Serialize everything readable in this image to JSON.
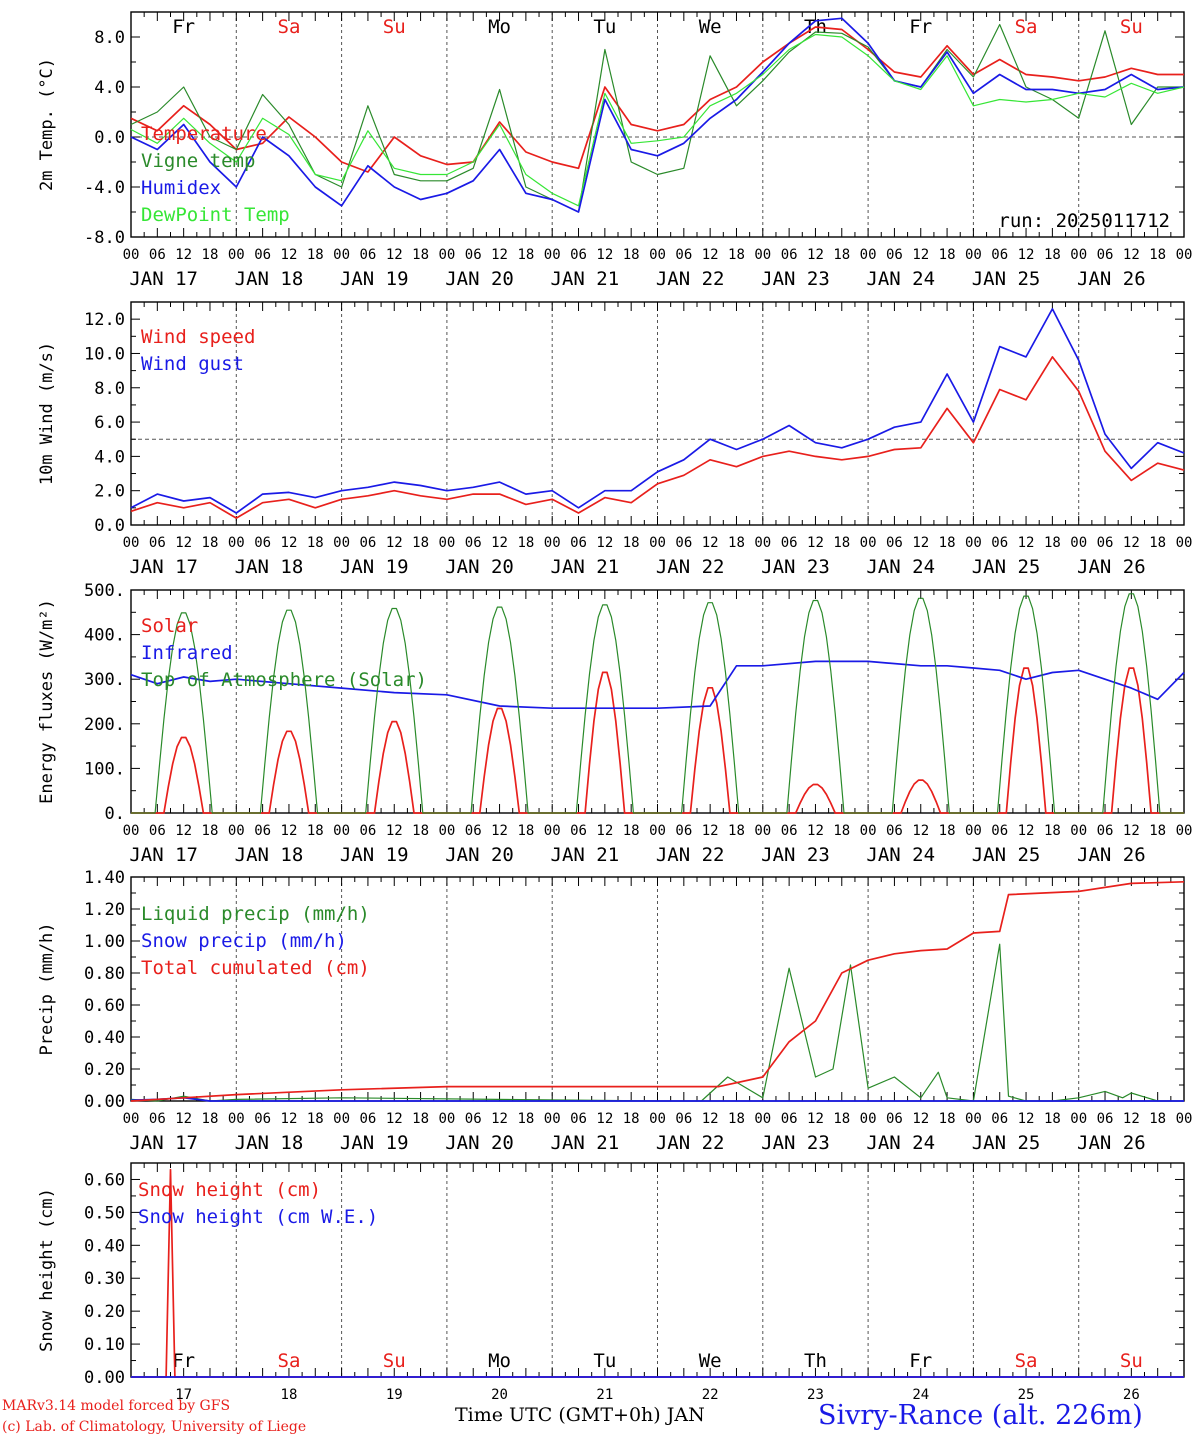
{
  "colors": {
    "red": "#e8201c",
    "blue": "#1a1ae6",
    "green": "#2a8a2a",
    "lightgreen": "#36e636",
    "axis": "#000000",
    "grid": "#555555"
  },
  "footer": {
    "model": "MARv3.14 model forced by GFS",
    "copyright": "(c) Lab. of Climatology, University of Liege",
    "xlabel": "Time UTC (GMT+0h) JAN",
    "station": "Sivry-Rance (alt. 226m)"
  },
  "chart_data": [
    {
      "type": "line",
      "ylabel": "2m Temp. (°C)",
      "ylim": [
        -8,
        10
      ],
      "yticks": [
        "-8.0",
        "-4.0",
        "0.0",
        "4.0",
        "8.0"
      ],
      "ytick_values": [
        -8,
        -4,
        0,
        4,
        8
      ],
      "hline": 0,
      "annotation": "run: 2025011712",
      "day_labels": [
        "Fr",
        "Sa",
        "Su",
        "Mo",
        "Tu",
        "We",
        "Th",
        "Fr",
        "Sa",
        "Su"
      ],
      "weekend": [
        false,
        true,
        true,
        false,
        false,
        false,
        false,
        false,
        true,
        true
      ],
      "x_hours": [
        0,
        6,
        12,
        18,
        24,
        30,
        36,
        42,
        48,
        54,
        60,
        66,
        72,
        78,
        84,
        90,
        96,
        102,
        108,
        114,
        120,
        126,
        132,
        138,
        144,
        150,
        156,
        162,
        168,
        174,
        180,
        186,
        192,
        198,
        204,
        210,
        216,
        222,
        228,
        234,
        240
      ],
      "series": [
        {
          "name": "Temperature",
          "color": "red",
          "values": [
            1.5,
            0.5,
            2.5,
            1.0,
            -1.0,
            -0.5,
            1.6,
            0.0,
            -2.0,
            -2.8,
            0.0,
            -1.5,
            -2.2,
            -2.0,
            1.2,
            -1.2,
            -2.0,
            -2.5,
            4.0,
            1.0,
            0.5,
            1.0,
            3.0,
            4.0,
            6.0,
            7.5,
            8.8,
            8.6,
            7.0,
            5.2,
            4.8,
            7.3,
            5.0,
            6.2,
            5.0,
            4.8,
            4.5,
            4.8,
            5.5,
            5.0,
            5.0
          ]
        },
        {
          "name": "Vigne temp",
          "color": "green",
          "values": [
            1.0,
            2.0,
            4.0,
            0.0,
            -1.0,
            3.4,
            1.0,
            -3.0,
            -4.0,
            2.5,
            -3.0,
            -3.5,
            -3.5,
            -2.5,
            3.8,
            -4.0,
            -5.0,
            -6.0,
            7.0,
            -2.0,
            -3.0,
            -2.5,
            6.5,
            2.5,
            4.5,
            6.8,
            8.4,
            8.3,
            7.2,
            4.5,
            4.0,
            7.0,
            4.8,
            9.0,
            4.0,
            3.0,
            1.5,
            8.5,
            1.0,
            4.0,
            4.0
          ]
        },
        {
          "name": "Humidex",
          "color": "blue",
          "values": [
            0.0,
            -1.0,
            1.0,
            -2.0,
            -4.0,
            0.0,
            -1.5,
            -4.0,
            -5.5,
            -2.3,
            -4.0,
            -5.0,
            -4.5,
            -3.5,
            -1.0,
            -4.5,
            -5.0,
            -6.0,
            3.0,
            -1.0,
            -1.5,
            -0.5,
            1.5,
            3.0,
            5.2,
            7.5,
            9.3,
            9.5,
            7.5,
            4.5,
            4.0,
            6.8,
            3.5,
            5.0,
            3.8,
            3.8,
            3.5,
            3.8,
            5.0,
            3.8,
            4.0
          ]
        },
        {
          "name": "DewPoint Temp",
          "color": "lightgreen",
          "values": [
            0.6,
            -0.5,
            1.5,
            -0.5,
            -2.0,
            1.5,
            0.2,
            -3.0,
            -3.5,
            0.5,
            -2.5,
            -3.0,
            -3.0,
            -2.0,
            1.0,
            -3.0,
            -4.5,
            -5.5,
            3.5,
            -0.5,
            -0.3,
            0.0,
            2.5,
            3.5,
            5.0,
            7.0,
            8.2,
            8.0,
            6.5,
            4.5,
            3.8,
            6.5,
            2.5,
            3.0,
            2.8,
            3.0,
            3.5,
            3.2,
            4.3,
            3.5,
            4.0
          ]
        }
      ]
    },
    {
      "type": "line",
      "ylabel": "10m Wind (m/s)",
      "ylim": [
        0,
        13
      ],
      "yticks": [
        "0.0",
        "2.0",
        "4.0",
        "6.0",
        "8.0",
        "10.0",
        "12.0"
      ],
      "ytick_values": [
        0,
        2,
        4,
        6,
        8,
        10,
        12
      ],
      "hline": 5,
      "x_hours": [
        0,
        6,
        12,
        18,
        24,
        30,
        36,
        42,
        48,
        54,
        60,
        66,
        72,
        78,
        84,
        90,
        96,
        102,
        108,
        114,
        120,
        126,
        132,
        138,
        144,
        150,
        156,
        162,
        168,
        174,
        180,
        186,
        192,
        198,
        204,
        210,
        216,
        222,
        228,
        234,
        240
      ],
      "series": [
        {
          "name": "Wind speed",
          "color": "red",
          "values": [
            0.8,
            1.3,
            1.0,
            1.3,
            0.4,
            1.3,
            1.5,
            1.0,
            1.5,
            1.7,
            2.0,
            1.7,
            1.5,
            1.8,
            1.8,
            1.2,
            1.5,
            0.7,
            1.6,
            1.3,
            2.4,
            2.9,
            3.8,
            3.4,
            4.0,
            4.3,
            4.0,
            3.8,
            4.0,
            4.4,
            4.5,
            6.8,
            4.8,
            7.9,
            7.3,
            9.8,
            7.8,
            4.3,
            2.6,
            3.6,
            3.2
          ]
        },
        {
          "name": "Wind gust",
          "color": "blue",
          "values": [
            1.0,
            1.8,
            1.4,
            1.6,
            0.7,
            1.8,
            1.9,
            1.6,
            2.0,
            2.2,
            2.5,
            2.3,
            2.0,
            2.2,
            2.5,
            1.8,
            2.0,
            1.0,
            2.0,
            2.0,
            3.1,
            3.8,
            5.0,
            4.4,
            5.0,
            5.8,
            4.8,
            4.5,
            5.0,
            5.7,
            6.0,
            8.8,
            6.0,
            10.4,
            9.8,
            12.6,
            9.6,
            5.3,
            3.3,
            4.8,
            4.2
          ]
        }
      ]
    },
    {
      "type": "line",
      "ylabel": "Energy fluxes (W/m²)",
      "ylim": [
        0,
        500
      ],
      "yticks": [
        "0.",
        "100.",
        "200.",
        "300.",
        "400.",
        "500."
      ],
      "ytick_values": [
        0,
        100,
        200,
        300,
        400,
        500
      ],
      "series": [
        {
          "name": "Solar",
          "color": "red",
          "day_peaks": [
            172,
            186,
            208,
            238,
            320,
            285,
            65,
            75,
            330,
            330
          ]
        },
        {
          "name": "Infrared",
          "color": "blue",
          "x_hours": [
            0,
            6,
            12,
            18,
            24,
            36,
            48,
            60,
            72,
            84,
            96,
            108,
            120,
            132,
            138,
            144,
            156,
            168,
            180,
            186,
            192,
            198,
            204,
            210,
            216,
            222,
            228,
            234,
            240
          ],
          "values": [
            310,
            290,
            305,
            295,
            300,
            290,
            280,
            270,
            265,
            240,
            235,
            235,
            235,
            240,
            330,
            330,
            340,
            340,
            330,
            330,
            325,
            320,
            300,
            315,
            320,
            300,
            280,
            255,
            315
          ]
        },
        {
          "name": "Top of Atmosphere (Solar)",
          "color": "green",
          "day_peaks": [
            452,
            458,
            462,
            465,
            470,
            475,
            480,
            485,
            490,
            495
          ]
        }
      ]
    },
    {
      "type": "line",
      "ylabel": "Precip (mm/h)",
      "ylim": [
        0,
        1.4
      ],
      "yticks": [
        "0.00",
        "0.20",
        "0.40",
        "0.60",
        "0.80",
        "1.00",
        "1.20",
        "1.40"
      ],
      "ytick_values": [
        0,
        0.2,
        0.4,
        0.6,
        0.8,
        1.0,
        1.2,
        1.4
      ],
      "series": [
        {
          "name": "Liquid precip (mm/h)",
          "color": "green",
          "x_hours": [
            0,
            6,
            12,
            18,
            24,
            48,
            120,
            130,
            136,
            144,
            150,
            156,
            160,
            164,
            168,
            174,
            180,
            184,
            186,
            192,
            198,
            200,
            204,
            210,
            216,
            222,
            226,
            228,
            234,
            240
          ],
          "values": [
            0.01,
            0.0,
            0.03,
            0.0,
            0.01,
            0.02,
            0.0,
            0.0,
            0.15,
            0.02,
            0.83,
            0.15,
            0.2,
            0.85,
            0.08,
            0.15,
            0.02,
            0.18,
            0.02,
            0.0,
            0.98,
            0.03,
            0.0,
            0.0,
            0.02,
            0.06,
            0.02,
            0.05,
            0.0,
            0.0
          ]
        },
        {
          "name": "Snow precip (mm/h)",
          "color": "blue",
          "x_hours": [
            0,
            6,
            12,
            18,
            24,
            240
          ],
          "values": [
            0.005,
            0.01,
            0.02,
            0.0,
            0.0,
            0.0
          ]
        },
        {
          "name": "Total cumulated (cm)",
          "color": "red",
          "x_hours": [
            0,
            12,
            24,
            48,
            72,
            96,
            120,
            134,
            144,
            150,
            156,
            162,
            168,
            174,
            180,
            186,
            192,
            198,
            200,
            216,
            228,
            240
          ],
          "values": [
            0.0,
            0.02,
            0.04,
            0.07,
            0.09,
            0.09,
            0.09,
            0.09,
            0.15,
            0.37,
            0.5,
            0.8,
            0.88,
            0.92,
            0.94,
            0.95,
            1.05,
            1.06,
            1.29,
            1.31,
            1.36,
            1.37
          ]
        }
      ]
    },
    {
      "type": "line",
      "ylabel": "Snow height (cm)",
      "ylim": [
        0,
        0.65
      ],
      "yticks": [
        "0.00",
        "0.10",
        "0.20",
        "0.30",
        "0.40",
        "0.50",
        "0.60"
      ],
      "ytick_values": [
        0,
        0.1,
        0.2,
        0.3,
        0.4,
        0.5,
        0.6
      ],
      "day_labels": [
        "Fr",
        "Sa",
        "Su",
        "Mo",
        "Tu",
        "We",
        "Th",
        "Fr",
        "Sa",
        "Su"
      ],
      "weekend": [
        false,
        true,
        true,
        false,
        false,
        false,
        false,
        false,
        true,
        true
      ],
      "date_labels": [
        "17",
        "18",
        "19",
        "20",
        "21",
        "22",
        "23",
        "24",
        "25",
        "26"
      ],
      "series": [
        {
          "name": "Snow height (cm)",
          "color": "red",
          "x_hours": [
            0,
            8,
            9,
            10,
            240
          ],
          "values": [
            0,
            0,
            0.63,
            0,
            0
          ]
        },
        {
          "name": "Snow height (cm W.E.)",
          "color": "blue",
          "x_hours": [
            0,
            240
          ],
          "values": [
            0,
            0
          ]
        }
      ]
    }
  ],
  "x_axis": {
    "hour_labels": [
      "00",
      "06",
      "12",
      "18"
    ],
    "end_label": "00",
    "date_labels": [
      "JAN 17",
      "JAN 18",
      "JAN 19",
      "JAN 20",
      "JAN 21",
      "JAN 22",
      "JAN 23",
      "JAN 24",
      "JAN 25",
      "JAN 26"
    ]
  }
}
